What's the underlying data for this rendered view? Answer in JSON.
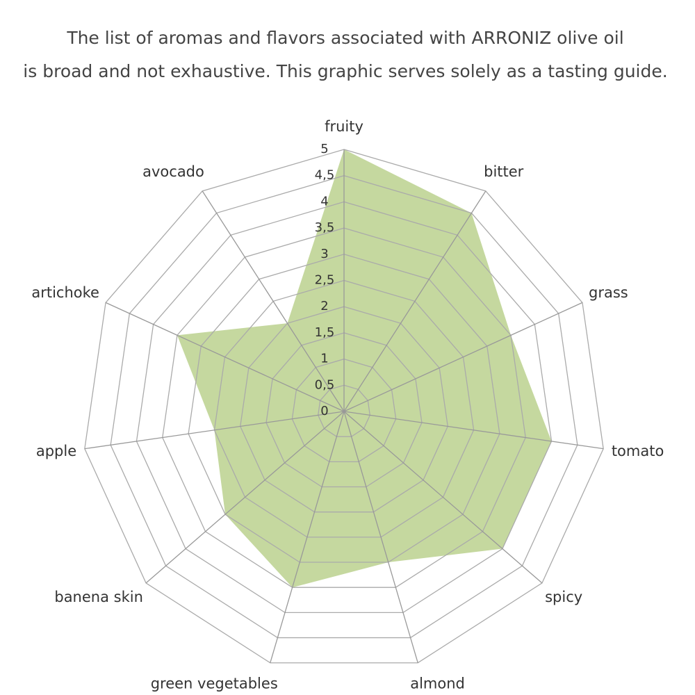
{
  "chart_data": {
    "type": "radar",
    "title": "The list of aromas and flavors associated with ARRONIZ olive oil",
    "subtitle": "is broad and not exhaustive. This graphic serves solely as a tasting guide.",
    "categories": [
      "fruity",
      "bitter",
      "grass",
      "tomato",
      "spicy",
      "almond",
      "green vegetables",
      "banena skin",
      "apple",
      "artichoke",
      "avocado"
    ],
    "series": [
      {
        "color": "#c5d89f",
        "values": [
          5,
          4.5,
          3.5,
          4,
          4,
          3,
          3.5,
          3,
          2.5,
          3.5,
          2
        ]
      }
    ],
    "ylim": [
      0,
      5
    ],
    "yticks": [
      0,
      {
        "value": 0.5,
        "label": "0,5"
      },
      1,
      {
        "value": 1.5,
        "label": "1,5"
      },
      2,
      {
        "value": 2.5,
        "label": "2,5"
      },
      3,
      {
        "value": 3.5,
        "label": "3,5"
      },
      4,
      {
        "value": 4.5,
        "label": "4,5"
      },
      5
    ],
    "grid": true
  }
}
